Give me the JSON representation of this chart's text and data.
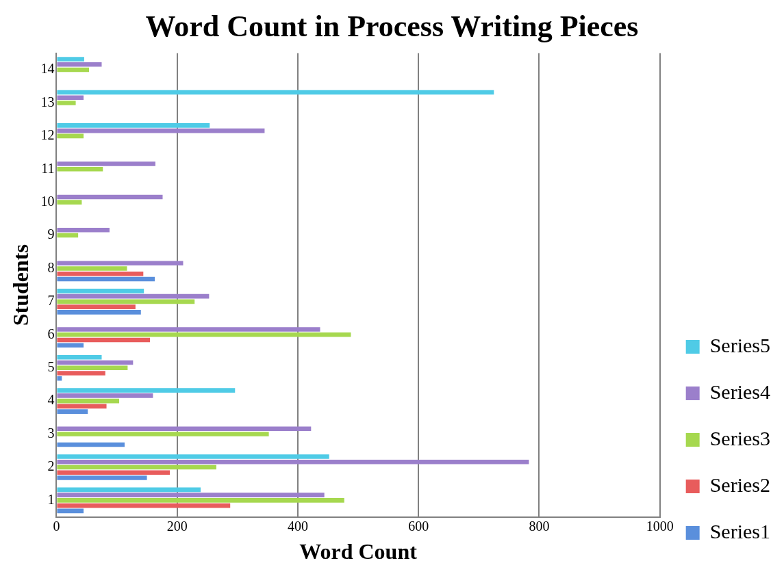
{
  "chart_data": {
    "type": "bar",
    "orientation": "horizontal",
    "title": "Word Count in Process Writing Pieces",
    "xlabel": "Word Count",
    "ylabel": "Students",
    "categories": [
      "14",
      "13",
      "12",
      "11",
      "10",
      "9",
      "8",
      "7",
      "6",
      "5",
      "4",
      "3",
      "2",
      "1"
    ],
    "series": [
      {
        "name": "Series1",
        "color": "#5a8fdc",
        "values": [
          null,
          null,
          null,
          null,
          null,
          null,
          163,
          140,
          45,
          9,
          52,
          113,
          150,
          45
        ]
      },
      {
        "name": "Series2",
        "color": "#e85c5c",
        "values": [
          null,
          null,
          null,
          null,
          null,
          null,
          144,
          131,
          155,
          81,
          83,
          null,
          188,
          288
        ]
      },
      {
        "name": "Series3",
        "color": "#a6d84f",
        "values": [
          54,
          32,
          45,
          77,
          42,
          36,
          117,
          229,
          488,
          118,
          104,
          352,
          265,
          477
        ]
      },
      {
        "name": "Series4",
        "color": "#9b7fcb",
        "values": [
          75,
          45,
          345,
          164,
          176,
          88,
          210,
          253,
          437,
          127,
          160,
          422,
          783,
          444
        ]
      },
      {
        "name": "Series5",
        "color": "#4fcbe6",
        "values": [
          46,
          725,
          254,
          null,
          null,
          null,
          null,
          145,
          null,
          75,
          296,
          null,
          452,
          239
        ]
      }
    ],
    "xlim": [
      0,
      1000
    ],
    "xticks": [
      0,
      200,
      400,
      600,
      800,
      1000
    ],
    "grid": "x",
    "legend": "right"
  }
}
